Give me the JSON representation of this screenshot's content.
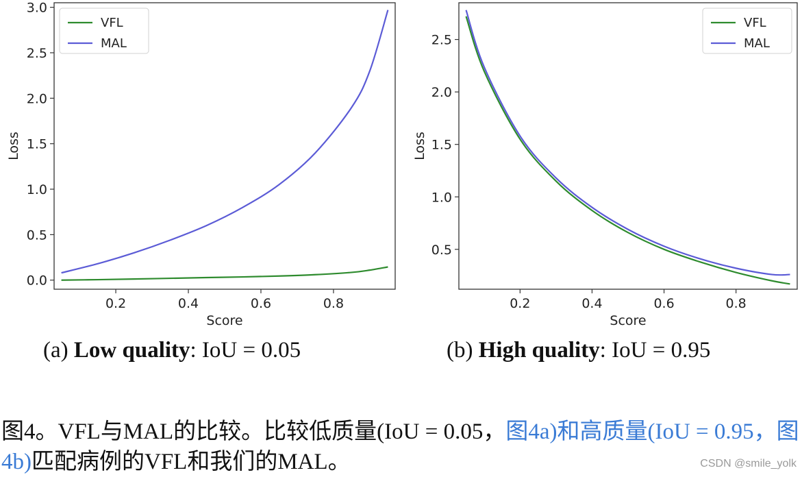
{
  "chart_data": [
    {
      "type": "line",
      "title": "",
      "xlabel": "Score",
      "ylabel": "Loss",
      "xlim": [
        0.03,
        0.97
      ],
      "ylim": [
        -0.1,
        3.05
      ],
      "xticks": [
        "0.2",
        "0.4",
        "0.6",
        "0.8"
      ],
      "xtick_values": [
        0.2,
        0.4,
        0.6,
        0.8
      ],
      "yticks": [
        "0.0",
        "0.5",
        "1.0",
        "1.5",
        "2.0",
        "2.5",
        "3.0"
      ],
      "ytick_values": [
        0.0,
        0.5,
        1.0,
        1.5,
        2.0,
        2.5,
        3.0
      ],
      "legend_position": "top-left",
      "x": [
        0.05,
        0.15,
        0.25,
        0.35,
        0.45,
        0.55,
        0.65,
        0.75,
        0.85,
        0.9,
        0.95
      ],
      "series": [
        {
          "name": "VFL",
          "color": "#2e8b2e",
          "values": [
            0.0,
            0.005,
            0.012,
            0.02,
            0.028,
            0.035,
            0.045,
            0.06,
            0.085,
            0.11,
            0.145
          ]
        },
        {
          "name": "MAL",
          "color": "#5b5bd6",
          "values": [
            0.08,
            0.18,
            0.3,
            0.44,
            0.6,
            0.8,
            1.05,
            1.4,
            1.9,
            2.3,
            2.97
          ]
        }
      ]
    },
    {
      "type": "line",
      "title": "",
      "xlabel": "Score",
      "ylabel": "Loss",
      "xlim": [
        0.03,
        0.97
      ],
      "ylim": [
        0.12,
        2.85
      ],
      "xticks": [
        "0.2",
        "0.4",
        "0.6",
        "0.8"
      ],
      "xtick_values": [
        0.2,
        0.4,
        0.6,
        0.8
      ],
      "yticks": [
        "0.5",
        "1.0",
        "1.5",
        "2.0",
        "2.5"
      ],
      "ytick_values": [
        0.5,
        1.0,
        1.5,
        2.0,
        2.5
      ],
      "legend_position": "top-right",
      "x": [
        0.05,
        0.1,
        0.2,
        0.3,
        0.4,
        0.5,
        0.6,
        0.7,
        0.8,
        0.9,
        0.95
      ],
      "series": [
        {
          "name": "VFL",
          "color": "#2e8b2e",
          "values": [
            2.72,
            2.2,
            1.55,
            1.15,
            0.87,
            0.66,
            0.5,
            0.38,
            0.28,
            0.2,
            0.17
          ]
        },
        {
          "name": "MAL",
          "color": "#5b5bd6",
          "values": [
            2.78,
            2.24,
            1.58,
            1.18,
            0.9,
            0.69,
            0.53,
            0.41,
            0.32,
            0.26,
            0.26
          ]
        }
      ]
    }
  ],
  "captions": {
    "a_prefix": "(a) ",
    "a_bold": "Low quality",
    "a_suffix": ": IoU = 0.05",
    "b_prefix": "(b) ",
    "b_bold": "High quality",
    "b_suffix": ": IoU = 0.95"
  },
  "figure_caption": {
    "part1": "图4。VFL与MAL的比较。比较低质量(IoU = 0.05，",
    "link1": "图4a)和高质量(IoU = 0.95，",
    "link2": "图4b)",
    "part2": "匹配病例的VFL和我们的MAL。"
  },
  "watermark": "CSDN @smile_yolk"
}
